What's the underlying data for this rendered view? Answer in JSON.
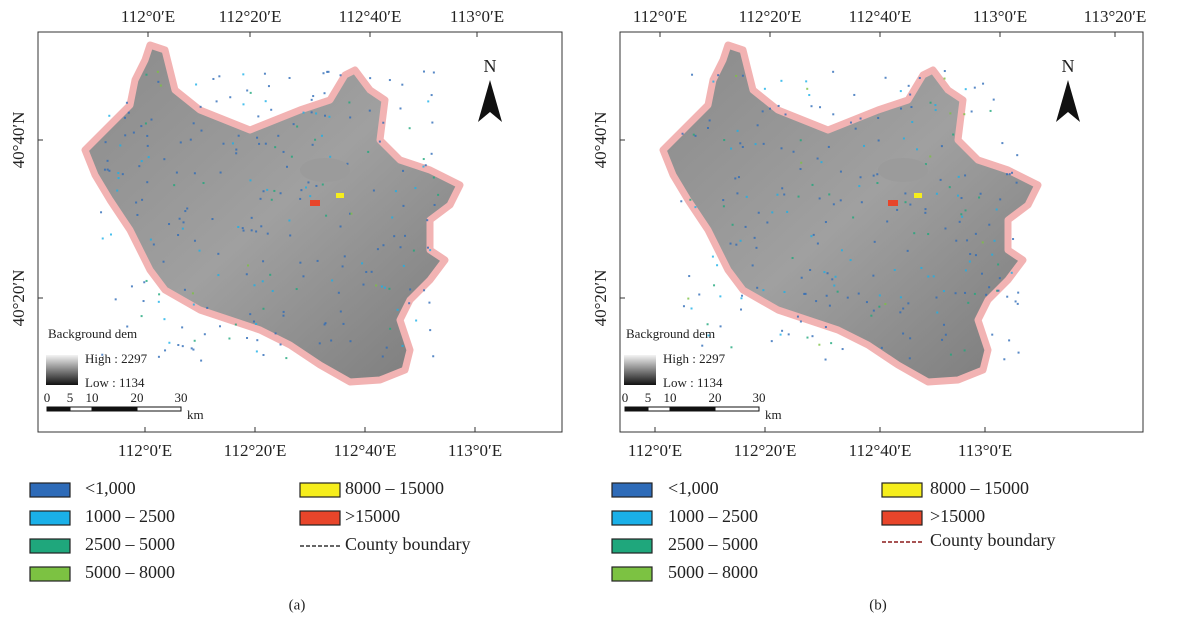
{
  "panels": [
    {
      "caption": "(a)",
      "top_labels": [
        "112°0′E",
        "112°20′E",
        "112°40′E",
        "113°0′E"
      ],
      "bottom_labels": [
        "112°0′E",
        "112°20′E",
        "112°40′E",
        "113°0′E"
      ],
      "left_labels": [
        "40°40′N",
        "40°20′N"
      ],
      "north": "N",
      "dem": {
        "title": "Background dem",
        "high": "High : 2297",
        "low": "Low : 1134"
      },
      "scale": {
        "ticks": [
          "0",
          "5",
          "10",
          "20",
          "30"
        ],
        "unit": "km"
      },
      "legend": [
        {
          "label": "<1,000",
          "color": "#2e6bb8"
        },
        {
          "label": "1000 – 2500",
          "color": "#1ab0e8"
        },
        {
          "label": "2500 – 5000",
          "color": "#1fa77c"
        },
        {
          "label": "5000 – 8000",
          "color": "#7cc242"
        },
        {
          "label": "8000 – 15000",
          "color": "#f6ee1c"
        },
        {
          "label": ">15000",
          "color": "#e8452a"
        }
      ],
      "boundary": {
        "label": "County boundary",
        "color": "#333333"
      }
    },
    {
      "caption": "(b)",
      "top_labels": [
        "112°0′E",
        "112°20′E",
        "112°40′E",
        "113°0′E",
        "113°20′E"
      ],
      "bottom_labels": [
        "112°0′E",
        "112°20′E",
        "112°40′E",
        "113°0′E"
      ],
      "left_labels": [
        "40°40′N",
        "40°20′N"
      ],
      "north": "N",
      "dem": {
        "title": "Background dem",
        "high": "High : 2297",
        "low": "Low : 1134"
      },
      "scale": {
        "ticks": [
          "0",
          "5",
          "10",
          "20",
          "30"
        ],
        "unit": "km"
      },
      "legend": [
        {
          "label": "<1,000",
          "color": "#2e6bb8"
        },
        {
          "label": "1000 – 2500",
          "color": "#1ab0e8"
        },
        {
          "label": "2500 – 5000",
          "color": "#1fa77c"
        },
        {
          "label": "5000 – 8000",
          "color": "#7cc242"
        },
        {
          "label": "8000 – 15000",
          "color": "#f6ee1c"
        },
        {
          "label": ">15000",
          "color": "#e8452a"
        }
      ],
      "boundary": {
        "label": "County boundary",
        "color": "#8b1a1a"
      }
    }
  ]
}
